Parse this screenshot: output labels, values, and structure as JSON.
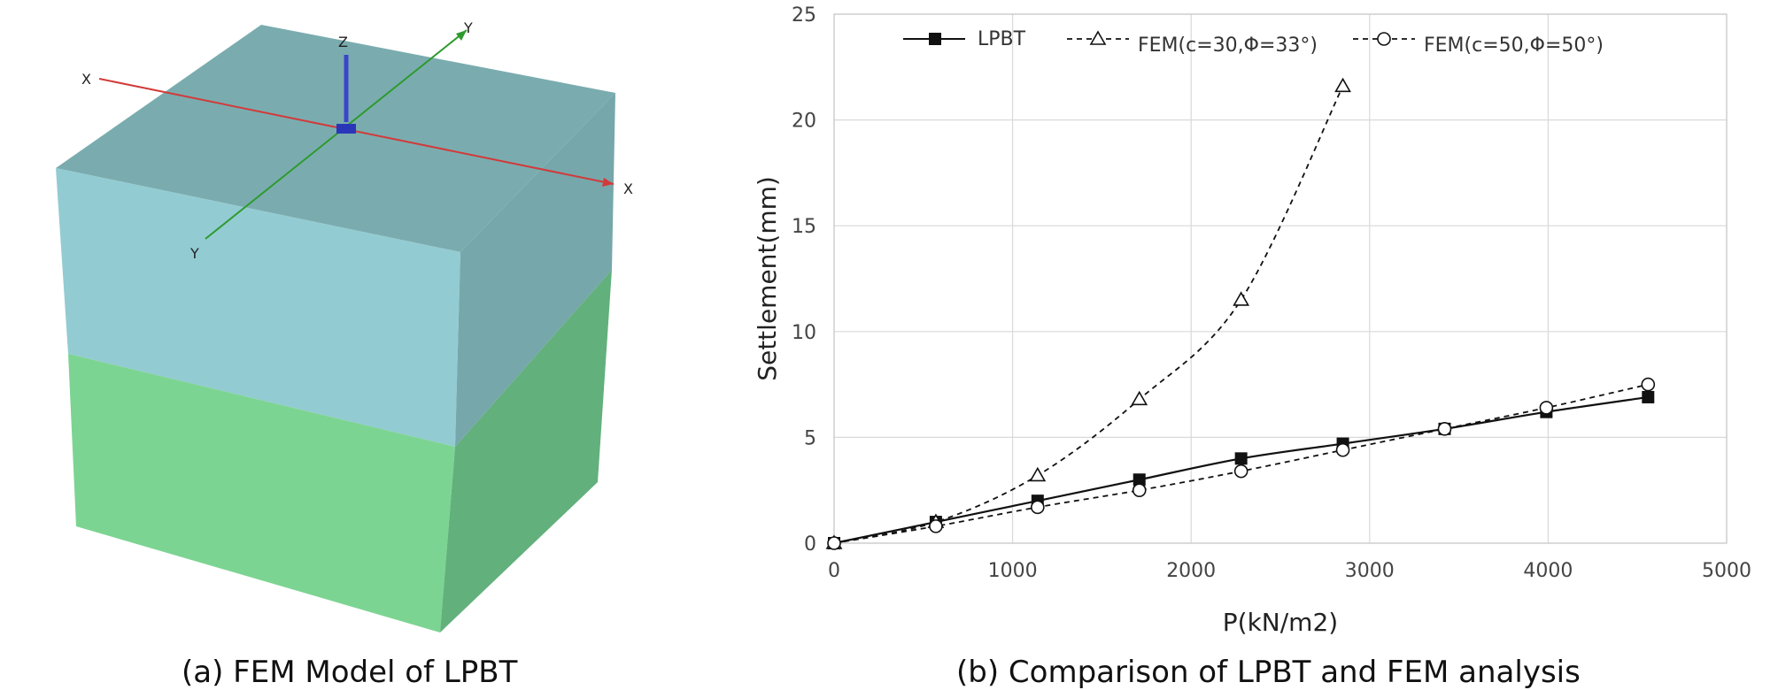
{
  "figure": {
    "caption_a": "(a) FEM Model of LPBT",
    "caption_b": "(b) Comparison of LPBT and FEM analysis"
  },
  "model3d": {
    "axis_labels": {
      "x_left": "X",
      "x_right": "X",
      "y_top": "Y",
      "y_bottom": "Y",
      "z": "Z"
    },
    "colors": {
      "top_face": "#7aacaf",
      "upper_layer_front": "#93cbd2",
      "upper_layer_side": "#76a7ab",
      "lower_layer_front": "#7cd492",
      "lower_layer_side": "#62b07c",
      "x_axis": "#d23a3a",
      "y_axis": "#2e9a2e",
      "z_axis": "#3a46c8"
    }
  },
  "chart_data": {
    "type": "line",
    "title": "",
    "xlabel": "P(kN/m2)",
    "ylabel": "Settlement(mm)",
    "xlim": [
      0,
      5000
    ],
    "ylim": [
      0,
      25
    ],
    "xticks": [
      "0",
      "1000",
      "2000",
      "3000",
      "4000",
      "5000"
    ],
    "yticks": [
      "0",
      "5",
      "10",
      "15",
      "20",
      "25"
    ],
    "grid": true,
    "legend_position": "top",
    "series": [
      {
        "name": "LPBT",
        "marker": "filled-square",
        "line": "solid",
        "color": "#111111",
        "x": [
          0,
          570,
          1140,
          1710,
          2280,
          2850,
          3420,
          3990,
          4560
        ],
        "y": [
          0,
          1.0,
          2.0,
          3.0,
          4.0,
          4.7,
          5.4,
          6.2,
          6.9
        ]
      },
      {
        "name": "FEM(c=30,Φ=33°)",
        "marker": "open-triangle",
        "line": "dashed",
        "color": "#111111",
        "x": [
          0,
          570,
          1140,
          1710,
          2280,
          2850
        ],
        "y": [
          0,
          1.0,
          3.2,
          6.8,
          11.5,
          21.6
        ]
      },
      {
        "name": "FEM(c=50,Φ=50°)",
        "marker": "open-circle",
        "line": "dashed",
        "color": "#111111",
        "x": [
          0,
          570,
          1140,
          1710,
          2280,
          2850,
          3420,
          3990,
          4560
        ],
        "y": [
          0,
          0.8,
          1.7,
          2.5,
          3.4,
          4.4,
          5.4,
          6.4,
          7.5
        ]
      }
    ]
  }
}
